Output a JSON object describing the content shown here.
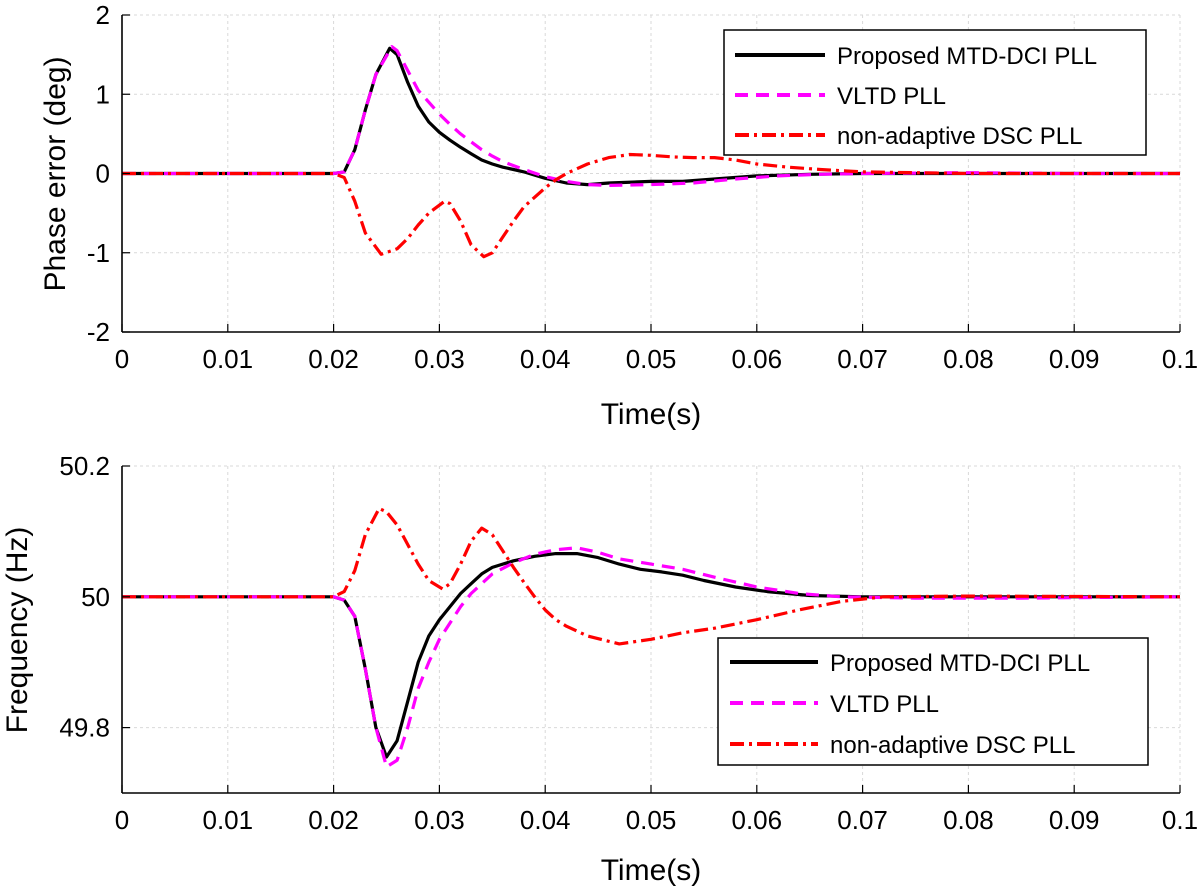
{
  "chart_data": [
    {
      "type": "line",
      "xlabel": "Time(s)",
      "ylabel": "Phase error (deg)",
      "xlim": [
        0,
        0.1
      ],
      "ylim": [
        -2,
        2
      ],
      "xticks": [
        0,
        0.01,
        0.02,
        0.03,
        0.04,
        0.05,
        0.06,
        0.07,
        0.08,
        0.09,
        0.1
      ],
      "xtick_labels": [
        "0",
        "0.01",
        "0.02",
        "0.03",
        "0.04",
        "0.05",
        "0.06",
        "0.07",
        "0.08",
        "0.09",
        "0.1"
      ],
      "yticks": [
        -2,
        -1,
        0,
        1,
        2
      ],
      "ytick_labels": [
        "-2",
        "-1",
        "0",
        "1",
        "2"
      ],
      "grid": true,
      "legend_position": "top-right",
      "series": [
        {
          "name": "Proposed MTD-DCI PLL",
          "color": "#000000",
          "style": "solid",
          "points": [
            [
              0,
              0
            ],
            [
              0.02,
              0
            ],
            [
              0.021,
              0.02
            ],
            [
              0.022,
              0.3
            ],
            [
              0.023,
              0.8
            ],
            [
              0.024,
              1.25
            ],
            [
              0.0253,
              1.58
            ],
            [
              0.026,
              1.5
            ],
            [
              0.027,
              1.15
            ],
            [
              0.028,
              0.85
            ],
            [
              0.029,
              0.65
            ],
            [
              0.03,
              0.52
            ],
            [
              0.031,
              0.42
            ],
            [
              0.032,
              0.33
            ],
            [
              0.033,
              0.25
            ],
            [
              0.034,
              0.17
            ],
            [
              0.035,
              0.12
            ],
            [
              0.036,
              0.08
            ],
            [
              0.037,
              0.05
            ],
            [
              0.038,
              0.02
            ],
            [
              0.04,
              -0.06
            ],
            [
              0.042,
              -0.12
            ],
            [
              0.044,
              -0.14
            ],
            [
              0.046,
              -0.12
            ],
            [
              0.05,
              -0.1
            ],
            [
              0.053,
              -0.1
            ],
            [
              0.056,
              -0.07
            ],
            [
              0.06,
              -0.03
            ],
            [
              0.065,
              -0.01
            ],
            [
              0.07,
              0
            ],
            [
              0.1,
              0
            ]
          ]
        },
        {
          "name": "VLTD PLL",
          "color": "#ff00ff",
          "style": "dashed",
          "points": [
            [
              0,
              0
            ],
            [
              0.02,
              0
            ],
            [
              0.021,
              0.02
            ],
            [
              0.022,
              0.3
            ],
            [
              0.023,
              0.8
            ],
            [
              0.024,
              1.25
            ],
            [
              0.0255,
              1.6
            ],
            [
              0.026,
              1.55
            ],
            [
              0.027,
              1.3
            ],
            [
              0.028,
              1.05
            ],
            [
              0.029,
              0.9
            ],
            [
              0.03,
              0.75
            ],
            [
              0.031,
              0.62
            ],
            [
              0.032,
              0.5
            ],
            [
              0.033,
              0.4
            ],
            [
              0.034,
              0.3
            ],
            [
              0.035,
              0.22
            ],
            [
              0.036,
              0.15
            ],
            [
              0.037,
              0.1
            ],
            [
              0.038,
              0.05
            ],
            [
              0.04,
              -0.04
            ],
            [
              0.042,
              -0.1
            ],
            [
              0.044,
              -0.14
            ],
            [
              0.046,
              -0.15
            ],
            [
              0.05,
              -0.14
            ],
            [
              0.054,
              -0.12
            ],
            [
              0.058,
              -0.07
            ],
            [
              0.062,
              -0.03
            ],
            [
              0.066,
              -0.01
            ],
            [
              0.07,
              0
            ],
            [
              0.08,
              0.01
            ],
            [
              0.09,
              0
            ],
            [
              0.1,
              0
            ]
          ]
        },
        {
          "name": "non-adaptive DSC PLL",
          "color": "#ff0000",
          "style": "dashdot",
          "points": [
            [
              0,
              0
            ],
            [
              0.02,
              0
            ],
            [
              0.021,
              -0.05
            ],
            [
              0.022,
              -0.35
            ],
            [
              0.023,
              -0.75
            ],
            [
              0.0245,
              -1.02
            ],
            [
              0.026,
              -0.95
            ],
            [
              0.027,
              -0.82
            ],
            [
              0.028,
              -0.65
            ],
            [
              0.029,
              -0.5
            ],
            [
              0.0305,
              -0.35
            ],
            [
              0.031,
              -0.38
            ],
            [
              0.032,
              -0.6
            ],
            [
              0.033,
              -0.9
            ],
            [
              0.0342,
              -1.05
            ],
            [
              0.035,
              -1.0
            ],
            [
              0.036,
              -0.8
            ],
            [
              0.037,
              -0.6
            ],
            [
              0.038,
              -0.42
            ],
            [
              0.039,
              -0.3
            ],
            [
              0.04,
              -0.18
            ],
            [
              0.041,
              -0.08
            ],
            [
              0.042,
              0
            ],
            [
              0.044,
              0.12
            ],
            [
              0.046,
              0.2
            ],
            [
              0.048,
              0.24
            ],
            [
              0.05,
              0.23
            ],
            [
              0.052,
              0.21
            ],
            [
              0.054,
              0.2
            ],
            [
              0.056,
              0.2
            ],
            [
              0.058,
              0.17
            ],
            [
              0.06,
              0.12
            ],
            [
              0.063,
              0.08
            ],
            [
              0.066,
              0.05
            ],
            [
              0.07,
              0.02
            ],
            [
              0.075,
              0.01
            ],
            [
              0.08,
              0
            ],
            [
              0.1,
              0
            ]
          ]
        }
      ]
    },
    {
      "type": "line",
      "xlabel": "Time(s)",
      "ylabel": "Frequency (Hz)",
      "xlim": [
        0,
        0.1
      ],
      "ylim": [
        49.7,
        50.2
      ],
      "xticks": [
        0,
        0.01,
        0.02,
        0.03,
        0.04,
        0.05,
        0.06,
        0.07,
        0.08,
        0.09,
        0.1
      ],
      "xtick_labels": [
        "0",
        "0.01",
        "0.02",
        "0.03",
        "0.04",
        "0.05",
        "0.06",
        "0.07",
        "0.08",
        "0.09",
        "0.1"
      ],
      "yticks": [
        49.8,
        50,
        50.2
      ],
      "ytick_labels": [
        "49.8",
        "50",
        "50.2"
      ],
      "grid": true,
      "legend_position": "bottom-right",
      "series": [
        {
          "name": "Proposed MTD-DCI PLL",
          "color": "#000000",
          "style": "solid",
          "points": [
            [
              0,
              50
            ],
            [
              0.02,
              50
            ],
            [
              0.021,
              49.995
            ],
            [
              0.022,
              49.97
            ],
            [
              0.023,
              49.89
            ],
            [
              0.024,
              49.8
            ],
            [
              0.025,
              49.755
            ],
            [
              0.026,
              49.78
            ],
            [
              0.027,
              49.84
            ],
            [
              0.028,
              49.9
            ],
            [
              0.029,
              49.94
            ],
            [
              0.03,
              49.965
            ],
            [
              0.031,
              49.985
            ],
            [
              0.032,
              50.005
            ],
            [
              0.033,
              50.02
            ],
            [
              0.034,
              50.035
            ],
            [
              0.035,
              50.045
            ],
            [
              0.037,
              50.055
            ],
            [
              0.039,
              50.062
            ],
            [
              0.041,
              50.066
            ],
            [
              0.043,
              50.066
            ],
            [
              0.045,
              50.06
            ],
            [
              0.047,
              50.05
            ],
            [
              0.049,
              50.042
            ],
            [
              0.051,
              50.038
            ],
            [
              0.053,
              50.033
            ],
            [
              0.055,
              50.025
            ],
            [
              0.058,
              50.015
            ],
            [
              0.061,
              50.008
            ],
            [
              0.065,
              50.002
            ],
            [
              0.07,
              50
            ],
            [
              0.1,
              50
            ]
          ]
        },
        {
          "name": "VLTD PLL",
          "color": "#ff00ff",
          "style": "dashed",
          "points": [
            [
              0,
              50
            ],
            [
              0.02,
              50
            ],
            [
              0.021,
              49.995
            ],
            [
              0.022,
              49.97
            ],
            [
              0.023,
              49.89
            ],
            [
              0.024,
              49.8
            ],
            [
              0.025,
              49.74
            ],
            [
              0.026,
              49.75
            ],
            [
              0.027,
              49.8
            ],
            [
              0.028,
              49.86
            ],
            [
              0.029,
              49.9
            ],
            [
              0.03,
              49.935
            ],
            [
              0.031,
              49.96
            ],
            [
              0.032,
              49.985
            ],
            [
              0.033,
              50.005
            ],
            [
              0.034,
              50.02
            ],
            [
              0.035,
              50.035
            ],
            [
              0.037,
              50.052
            ],
            [
              0.039,
              50.065
            ],
            [
              0.041,
              50.072
            ],
            [
              0.043,
              50.075
            ],
            [
              0.045,
              50.068
            ],
            [
              0.047,
              50.058
            ],
            [
              0.05,
              50.05
            ],
            [
              0.053,
              50.042
            ],
            [
              0.056,
              50.03
            ],
            [
              0.06,
              50.015
            ],
            [
              0.064,
              50.005
            ],
            [
              0.068,
              50
            ],
            [
              0.075,
              49.998
            ],
            [
              0.085,
              49.998
            ],
            [
              0.1,
              50
            ]
          ]
        },
        {
          "name": "non-adaptive DSC PLL",
          "color": "#ff0000",
          "style": "dashdot",
          "points": [
            [
              0,
              50
            ],
            [
              0.02,
              50
            ],
            [
              0.021,
              50.008
            ],
            [
              0.022,
              50.04
            ],
            [
              0.023,
              50.095
            ],
            [
              0.0243,
              50.135
            ],
            [
              0.025,
              50.13
            ],
            [
              0.026,
              50.11
            ],
            [
              0.027,
              50.08
            ],
            [
              0.028,
              50.05
            ],
            [
              0.029,
              50.025
            ],
            [
              0.0303,
              50.012
            ],
            [
              0.031,
              50.02
            ],
            [
              0.032,
              50.05
            ],
            [
              0.033,
              50.085
            ],
            [
              0.034,
              50.105
            ],
            [
              0.035,
              50.095
            ],
            [
              0.036,
              50.07
            ],
            [
              0.037,
              50.045
            ],
            [
              0.038,
              50.022
            ],
            [
              0.039,
              50.0
            ],
            [
              0.04,
              49.98
            ],
            [
              0.041,
              49.965
            ],
            [
              0.042,
              49.955
            ],
            [
              0.044,
              49.94
            ],
            [
              0.047,
              49.928
            ],
            [
              0.05,
              49.935
            ],
            [
              0.053,
              49.945
            ],
            [
              0.056,
              49.952
            ],
            [
              0.06,
              49.965
            ],
            [
              0.064,
              49.98
            ],
            [
              0.068,
              49.993
            ],
            [
              0.072,
              50
            ],
            [
              0.08,
              50.001
            ],
            [
              0.1,
              50
            ]
          ]
        }
      ]
    }
  ]
}
